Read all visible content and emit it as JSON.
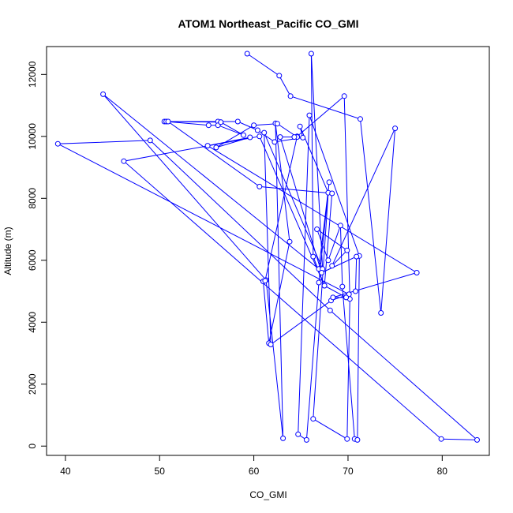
{
  "chart_data": {
    "type": "scatter",
    "title": "ATOM1 Northeast_Pacific CO_GMI",
    "xlabel": "CO_GMI",
    "ylabel": "Altitude (m)",
    "xlim": [
      38,
      85
    ],
    "ylim": [
      -300,
      12900
    ],
    "xticks": [
      40,
      50,
      60,
      70,
      80
    ],
    "yticks": [
      0,
      2000,
      4000,
      6000,
      8000,
      10000,
      12000
    ],
    "grid": false,
    "legend": "none",
    "line_color": "#0000ff",
    "series": [
      {
        "x": [
          59.3,
          62.7,
          63.9,
          71.3,
          73.5,
          75.0,
          68.3,
          69.9,
          66.7,
          67.9,
          69.2,
          69.4,
          70.7,
          71.0,
          71.2,
          65.9,
          64.7,
          65.6,
          66.9,
          68.0,
          66.9,
          44.0,
          61.3,
          63.1,
          62.3,
          63.8,
          61.6,
          61.0,
          61.2,
          64.6,
          69.6,
          70.2,
          69.9,
          66.3,
          67.9,
          64.9,
          65.2,
          62.2,
          60.4,
          58.3,
          56.2,
          50.5,
          50.7,
          55.2,
          56.2,
          58.9,
          56.5,
          56.5,
          50.9,
          60.6,
          68.3,
          67.5,
          66.3,
          66.1,
          67.3,
          61.1,
          61.8,
          68.2,
          70.1,
          39.2,
          49.0,
          68.1,
          83.7,
          79.9,
          46.2,
          60.6,
          67.5,
          69.8,
          68.4,
          77.3,
          55.1,
          59.6,
          56.0,
          60.0,
          62.5,
          64.6,
          64.3,
          62.8,
          67.2,
          70.9,
          70.8
        ]
      }
    ]
  }
}
